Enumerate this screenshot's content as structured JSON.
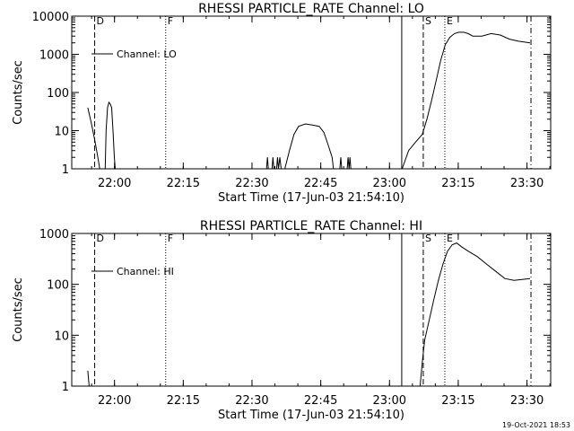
{
  "footer_timestamp": "19-Oct-2021 18:53",
  "chart_data": [
    {
      "type": "line",
      "title": "RHESSI PARTICLE_RATE Channel: LO",
      "xlabel": "Start Time (17-Jun-03 21:54:10)",
      "ylabel": "Counts/sec",
      "yscale": "log",
      "xlim_minutes": [
        -3.5,
        34.5
      ],
      "ylim": [
        1,
        10000
      ],
      "x_tick_minutes": [
        5.83,
        20.83,
        35.83,
        50.83,
        65.83,
        80.83,
        95.83
      ],
      "x_tick_labels": [
        "22:00",
        "22:15",
        "22:30",
        "22:45",
        "23:00",
        "23:15",
        "23:30"
      ],
      "y_tick_values": [
        1,
        10,
        100,
        1000,
        10000
      ],
      "y_tick_labels": [
        "1",
        "10",
        "100",
        "1000",
        "10000"
      ],
      "legend": {
        "label": "Channel: LO",
        "position": "top-left"
      },
      "markers": [
        {
          "label": "D",
          "time": 1.5,
          "style": "dashed"
        },
        {
          "label": "F",
          "time": 17.0,
          "style": "dotted"
        },
        {
          "label": "",
          "time": 68.5,
          "style": "solid"
        },
        {
          "label": "S",
          "time": 73.2,
          "style": "dashed"
        },
        {
          "label": "E",
          "time": 77.9,
          "style": "dotted"
        },
        {
          "label": "",
          "time": 96.7,
          "style": "dashdot"
        }
      ],
      "series": [
        {
          "segments": [
            [
              [
                0.0,
                40
              ],
              [
                0.8,
                15
              ],
              [
                1.6,
                5
              ],
              [
                2.2,
                2
              ],
              [
                2.6,
                1
              ]
            ],
            [
              [
                3.8,
                1
              ],
              [
                4.0,
                10
              ],
              [
                4.3,
                40
              ],
              [
                4.6,
                55
              ],
              [
                4.9,
                50
              ],
              [
                5.2,
                40
              ],
              [
                5.5,
                10
              ],
              [
                5.8,
                2
              ],
              [
                6.0,
                1
              ]
            ],
            [
              [
                39.0,
                1
              ],
              [
                39.2,
                2
              ],
              [
                39.4,
                1
              ]
            ],
            [
              [
                40.2,
                1
              ],
              [
                40.4,
                2
              ],
              [
                40.6,
                1
              ]
            ],
            [
              [
                41.2,
                1
              ],
              [
                41.4,
                2
              ],
              [
                41.6,
                1
              ],
              [
                41.9,
                2
              ],
              [
                42.2,
                1
              ]
            ],
            [
              [
                43.0,
                1
              ],
              [
                44.0,
                3
              ],
              [
                45.0,
                8
              ],
              [
                46.0,
                13
              ],
              [
                47.5,
                15
              ],
              [
                49.0,
                14
              ],
              [
                50.5,
                13
              ],
              [
                51.5,
                9
              ],
              [
                52.5,
                4
              ],
              [
                53.3,
                2
              ],
              [
                53.6,
                1
              ]
            ],
            [
              [
                55.0,
                1
              ],
              [
                55.2,
                2
              ],
              [
                55.4,
                1
              ]
            ],
            [
              [
                56.6,
                1
              ],
              [
                56.8,
                2
              ],
              [
                57.0,
                1
              ],
              [
                57.2,
                2
              ],
              [
                57.4,
                1
              ]
            ],
            [
              [
                68.6,
                1
              ],
              [
                70.0,
                3
              ],
              [
                71.5,
                5
              ],
              [
                73.0,
                8
              ],
              [
                74.0,
                20
              ],
              [
                75.0,
                60
              ],
              [
                76.0,
                200
              ],
              [
                77.0,
                700
              ],
              [
                78.0,
                1800
              ],
              [
                79.0,
                2800
              ],
              [
                80.0,
                3500
              ],
              [
                81.0,
                3800
              ],
              [
                82.0,
                3800
              ],
              [
                83.0,
                3500
              ],
              [
                84.0,
                3000
              ],
              [
                86.0,
                3000
              ],
              [
                88.0,
                3500
              ],
              [
                90.0,
                3200
              ],
              [
                92.0,
                2500
              ],
              [
                94.0,
                2200
              ],
              [
                96.5,
                2000
              ]
            ]
          ]
        }
      ]
    },
    {
      "type": "line",
      "title": "RHESSI PARTICLE_RATE Channel: HI",
      "xlabel": "Start Time (17-Jun-03 21:54:10)",
      "ylabel": "Counts/sec",
      "yscale": "log",
      "xlim_minutes": [
        -3.5,
        34.5
      ],
      "ylim": [
        1,
        1000
      ],
      "x_tick_minutes": [
        5.83,
        20.83,
        35.83,
        50.83,
        65.83,
        80.83,
        95.83
      ],
      "x_tick_labels": [
        "22:00",
        "22:15",
        "22:30",
        "22:45",
        "23:00",
        "23:15",
        "23:30"
      ],
      "y_tick_values": [
        1,
        10,
        100,
        1000
      ],
      "y_tick_labels": [
        "1",
        "10",
        "100",
        "1000"
      ],
      "legend": {
        "label": "Channel: HI",
        "position": "top-left"
      },
      "markers": [
        {
          "label": "D",
          "time": 1.5,
          "style": "dashed"
        },
        {
          "label": "F",
          "time": 17.0,
          "style": "dotted"
        },
        {
          "label": "",
          "time": 68.5,
          "style": "solid"
        },
        {
          "label": "S",
          "time": 73.2,
          "style": "dashed"
        },
        {
          "label": "E",
          "time": 77.9,
          "style": "dotted"
        },
        {
          "label": "",
          "time": 96.7,
          "style": "dashdot"
        }
      ],
      "series": [
        {
          "segments": [
            [
              [
                0.0,
                2
              ],
              [
                0.3,
                1
              ]
            ],
            [
              [
                72.5,
                1
              ],
              [
                73.0,
                3
              ],
              [
                73.5,
                8
              ],
              [
                74.5,
                20
              ],
              [
                75.5,
                50
              ],
              [
                76.5,
                120
              ],
              [
                77.5,
                250
              ],
              [
                78.5,
                450
              ],
              [
                79.5,
                600
              ],
              [
                80.5,
                650
              ],
              [
                81.5,
                550
              ],
              [
                83.0,
                450
              ],
              [
                85.0,
                350
              ],
              [
                87.0,
                250
              ],
              [
                89.0,
                180
              ],
              [
                91.0,
                130
              ],
              [
                93.0,
                120
              ],
              [
                96.5,
                130
              ]
            ]
          ]
        }
      ]
    }
  ]
}
